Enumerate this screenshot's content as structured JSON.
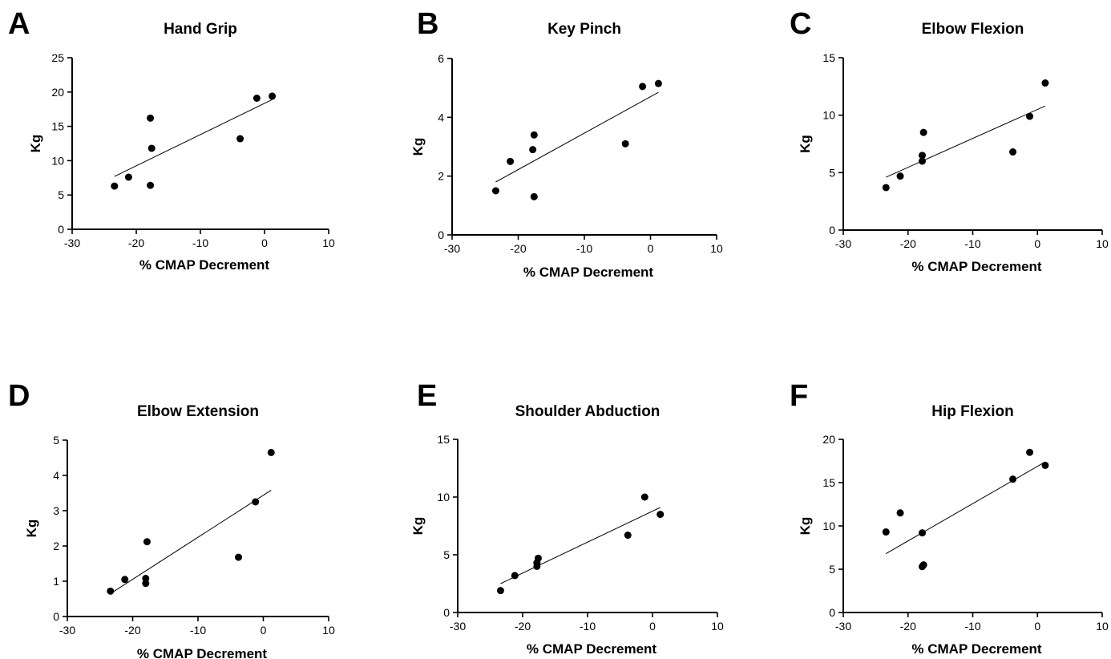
{
  "chart_data": [
    {
      "panel": "A",
      "type": "scatter",
      "title": "Hand Grip",
      "xlabel": "% CMAP Decrement",
      "ylabel": "Kg",
      "xlim": [
        -30,
        10
      ],
      "ylim": [
        0,
        25
      ],
      "xticks": [
        -30,
        -20,
        -10,
        0,
        10
      ],
      "yticks": [
        0,
        5,
        10,
        15,
        20,
        25
      ],
      "grid": false,
      "points": [
        {
          "x": -23.4,
          "y": 6.3
        },
        {
          "x": -21.2,
          "y": 7.6
        },
        {
          "x": -17.8,
          "y": 16.2
        },
        {
          "x": -17.6,
          "y": 11.8
        },
        {
          "x": -17.8,
          "y": 6.4
        },
        {
          "x": -3.8,
          "y": 13.2
        },
        {
          "x": -1.2,
          "y": 19.1
        },
        {
          "x": 1.2,
          "y": 19.4
        }
      ],
      "fit_line": [
        {
          "x": -23.4,
          "y": 7.7
        },
        {
          "x": 1.2,
          "y": 18.9
        }
      ]
    },
    {
      "panel": "B",
      "type": "scatter",
      "title": "Key Pinch",
      "xlabel": "% CMAP Decrement",
      "ylabel": "Kg",
      "xlim": [
        -30,
        10
      ],
      "ylim": [
        0,
        6
      ],
      "xticks": [
        -30,
        -20,
        -10,
        0,
        10
      ],
      "yticks": [
        0,
        2,
        4,
        6
      ],
      "grid": false,
      "points": [
        {
          "x": -23.4,
          "y": 1.5
        },
        {
          "x": -21.2,
          "y": 2.5
        },
        {
          "x": -17.8,
          "y": 2.9
        },
        {
          "x": -17.6,
          "y": 3.4
        },
        {
          "x": -17.6,
          "y": 1.3
        },
        {
          "x": -3.8,
          "y": 3.1
        },
        {
          "x": -1.2,
          "y": 5.05
        },
        {
          "x": 1.2,
          "y": 5.15
        }
      ],
      "fit_line": [
        {
          "x": -23.4,
          "y": 1.8
        },
        {
          "x": 1.2,
          "y": 4.85
        }
      ]
    },
    {
      "panel": "C",
      "type": "scatter",
      "title": "Elbow Flexion",
      "xlabel": "% CMAP Decrement",
      "ylabel": "Kg",
      "xlim": [
        -30,
        10
      ],
      "ylim": [
        0,
        15
      ],
      "xticks": [
        -30,
        -20,
        -10,
        0,
        10
      ],
      "yticks": [
        0,
        5,
        10,
        15
      ],
      "grid": false,
      "points": [
        {
          "x": -23.4,
          "y": 3.7
        },
        {
          "x": -21.2,
          "y": 4.7
        },
        {
          "x": -17.8,
          "y": 6.5
        },
        {
          "x": -17.8,
          "y": 6.0
        },
        {
          "x": -17.6,
          "y": 8.5
        },
        {
          "x": -3.8,
          "y": 6.8
        },
        {
          "x": -1.2,
          "y": 9.9
        },
        {
          "x": 1.2,
          "y": 12.8
        }
      ],
      "fit_line": [
        {
          "x": -23.4,
          "y": 4.6
        },
        {
          "x": 1.2,
          "y": 10.8
        }
      ]
    },
    {
      "panel": "D",
      "type": "scatter",
      "title": "Elbow Extension",
      "xlabel": "% CMAP Decrement",
      "ylabel": "Kg",
      "xlim": [
        -30,
        10
      ],
      "ylim": [
        0,
        5
      ],
      "xticks": [
        -30,
        -20,
        -10,
        0,
        10
      ],
      "yticks": [
        0,
        1,
        2,
        3,
        4,
        5
      ],
      "grid": false,
      "points": [
        {
          "x": -23.4,
          "y": 0.72
        },
        {
          "x": -21.2,
          "y": 1.05
        },
        {
          "x": -17.8,
          "y": 2.12
        },
        {
          "x": -18.0,
          "y": 1.08
        },
        {
          "x": -18.0,
          "y": 0.94
        },
        {
          "x": -3.8,
          "y": 1.68
        },
        {
          "x": -1.2,
          "y": 3.25
        },
        {
          "x": 1.2,
          "y": 4.65
        }
      ],
      "fit_line": [
        {
          "x": -23.4,
          "y": 0.65
        },
        {
          "x": 1.2,
          "y": 3.58
        }
      ]
    },
    {
      "panel": "E",
      "type": "scatter",
      "title": "Shoulder Abduction",
      "xlabel": "% CMAP Decrement",
      "ylabel": "Kg",
      "xlim": [
        -30,
        10
      ],
      "ylim": [
        0,
        15
      ],
      "xticks": [
        -30,
        -20,
        -10,
        0,
        10
      ],
      "yticks": [
        0,
        5,
        10,
        15
      ],
      "grid": false,
      "points": [
        {
          "x": -23.4,
          "y": 1.9
        },
        {
          "x": -21.2,
          "y": 3.2
        },
        {
          "x": -17.8,
          "y": 4.0
        },
        {
          "x": -17.8,
          "y": 4.3
        },
        {
          "x": -17.6,
          "y": 4.7
        },
        {
          "x": -3.8,
          "y": 6.7
        },
        {
          "x": -1.2,
          "y": 10.0
        },
        {
          "x": 1.2,
          "y": 8.5
        }
      ],
      "fit_line": [
        {
          "x": -23.4,
          "y": 2.5
        },
        {
          "x": 1.2,
          "y": 9.1
        }
      ]
    },
    {
      "panel": "F",
      "type": "scatter",
      "title": "Hip Flexion",
      "xlabel": "% CMAP Decrement",
      "ylabel": "Kg",
      "xlim": [
        -30,
        10
      ],
      "ylim": [
        0,
        20
      ],
      "xticks": [
        -30,
        -20,
        -10,
        0,
        10
      ],
      "yticks": [
        0,
        5,
        10,
        15,
        20
      ],
      "grid": false,
      "points": [
        {
          "x": -23.4,
          "y": 9.3
        },
        {
          "x": -21.2,
          "y": 11.5
        },
        {
          "x": -17.8,
          "y": 9.2
        },
        {
          "x": -17.8,
          "y": 5.3
        },
        {
          "x": -17.6,
          "y": 5.5
        },
        {
          "x": -3.8,
          "y": 15.4
        },
        {
          "x": -1.2,
          "y": 18.5
        },
        {
          "x": 1.2,
          "y": 17.0
        }
      ],
      "fit_line": [
        {
          "x": -23.4,
          "y": 6.8
        },
        {
          "x": 1.2,
          "y": 17.4
        }
      ]
    }
  ]
}
